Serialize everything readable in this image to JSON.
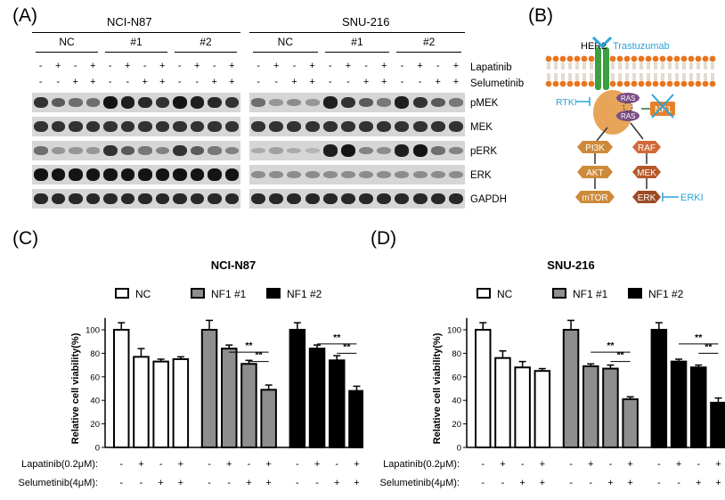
{
  "panels": {
    "a": "(A)",
    "b": "(B)",
    "c": "(C)",
    "d": "(D)"
  },
  "western": {
    "cell_lines": [
      "NCI-N87",
      "SNU-216"
    ],
    "groups": [
      "NC",
      "#1",
      "#2"
    ],
    "lapatinib_label": "Lapatinib",
    "selumetinib_label": "Selumetinib",
    "lap_pattern": [
      "-",
      "+",
      "-",
      "+"
    ],
    "sel_pattern": [
      "-",
      "-",
      "+",
      "+"
    ],
    "proteins": [
      "pMEK",
      "MEK",
      "pERK",
      "ERK",
      "GAPDH"
    ]
  },
  "pathway": {
    "her2": "HER2",
    "trastuzumab": "Trastuzumab",
    "rtki": "RTKI",
    "ras": "RAS",
    "nf1": "NF1",
    "nodes_left": [
      "PI3K",
      "AKT",
      "mTOR"
    ],
    "nodes_right": [
      "RAF",
      "MEK",
      "ERK"
    ],
    "erki": "ERKI",
    "colors": {
      "receptor": "#3aa041",
      "drug": "#2aa3d8",
      "ras": "#7a4f86",
      "nf1": "#e4822c",
      "left": "#cd8a3a",
      "right": "#b5592a",
      "membrane": "#e8751f"
    }
  },
  "charts": {
    "ylabel": "Relative cell viability(%)",
    "yticks": [
      "0",
      "20",
      "40",
      "60",
      "80",
      "100"
    ],
    "legend": [
      "NC",
      "NF1 #1",
      "NF1 #2"
    ],
    "bottom_rows": {
      "lap_label": "Lapatinib(0.2μM):",
      "sel_label": "Selumetinib(4μM):"
    },
    "sig": "**"
  },
  "chart_data": [
    {
      "type": "bar",
      "title": "NCI-N87",
      "ylabel": "Relative cell viability(%)",
      "ylim": [
        0,
        110
      ],
      "series": [
        {
          "name": "NC",
          "values": [
            100,
            77,
            73,
            75
          ],
          "errors": [
            6,
            7,
            2,
            2
          ]
        },
        {
          "name": "NF1 #1",
          "values": [
            100,
            84,
            71,
            49
          ],
          "errors": [
            8,
            3,
            3,
            4
          ]
        },
        {
          "name": "NF1 #2",
          "values": [
            100,
            84,
            74,
            48
          ],
          "errors": [
            6,
            3,
            4,
            4
          ]
        }
      ],
      "lapatinib": [
        "-",
        "+",
        "-",
        "+"
      ],
      "selumetinib": [
        "-",
        "-",
        "+",
        "+"
      ],
      "significance": [
        {
          "series": 1,
          "from": 1,
          "to": 3,
          "label": "**"
        },
        {
          "series": 1,
          "from": 2,
          "to": 3,
          "label": "**"
        },
        {
          "series": 2,
          "from": 1,
          "to": 3,
          "label": "**"
        },
        {
          "series": 2,
          "from": 2,
          "to": 3,
          "label": "**"
        }
      ]
    },
    {
      "type": "bar",
      "title": "SNU-216",
      "ylabel": "Relative cell viability(%)",
      "ylim": [
        0,
        110
      ],
      "series": [
        {
          "name": "NC",
          "values": [
            100,
            76,
            68,
            65
          ],
          "errors": [
            6,
            6,
            5,
            2
          ]
        },
        {
          "name": "NF1 #1",
          "values": [
            100,
            69,
            67,
            41
          ],
          "errors": [
            8,
            2,
            3,
            2
          ]
        },
        {
          "name": "NF1 #2",
          "values": [
            100,
            73,
            68,
            38
          ],
          "errors": [
            6,
            2,
            2,
            4
          ]
        }
      ],
      "lapatinib": [
        "-",
        "+",
        "-",
        "+"
      ],
      "selumetinib": [
        "-",
        "-",
        "+",
        "+"
      ],
      "significance": [
        {
          "series": 1,
          "from": 1,
          "to": 3,
          "label": "**"
        },
        {
          "series": 1,
          "from": 2,
          "to": 3,
          "label": "**"
        },
        {
          "series": 2,
          "from": 1,
          "to": 3,
          "label": "**"
        },
        {
          "series": 2,
          "from": 2,
          "to": 3,
          "label": "**"
        }
      ]
    }
  ]
}
